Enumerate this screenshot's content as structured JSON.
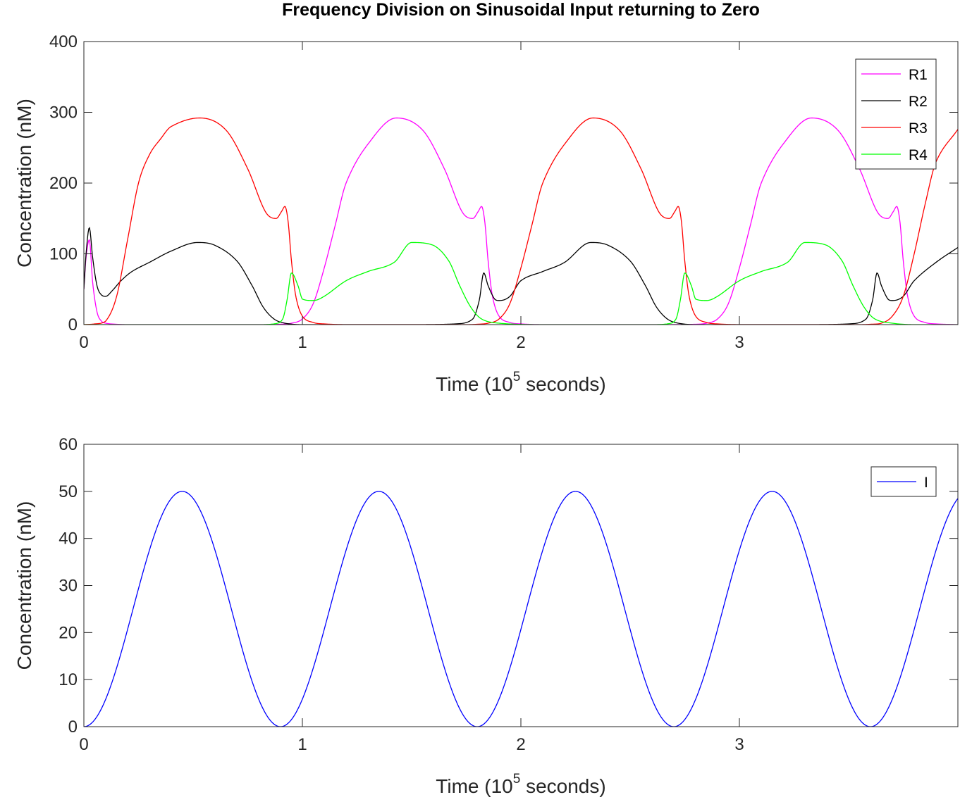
{
  "title": "Frequency Division on Sinusoidal Input returning to Zero",
  "chart_data": [
    {
      "type": "line",
      "xlabel_prefix": "Time (10",
      "xlabel_exponent": "5",
      "xlabel_suffix": " seconds)",
      "ylabel": "Concentration (nM)",
      "xlim": [
        0,
        4
      ],
      "ylim": [
        0,
        400
      ],
      "xticks": [
        "0",
        "1",
        "2",
        "3"
      ],
      "xtick_values": [
        0,
        1,
        2,
        3
      ],
      "yticks": [
        "0",
        "100",
        "200",
        "300",
        "400"
      ],
      "ytick_values": [
        0,
        100,
        200,
        300,
        400
      ],
      "legend_position": "top-right",
      "series": [
        {
          "name": "R1",
          "color": "#ff00ff",
          "x": [
            0,
            0.01,
            0.025,
            0.04,
            0.06,
            0.08,
            0.1,
            0.15,
            0.2,
            0.3,
            0.5,
            0.8,
            0.9,
            0.95,
            1.0,
            1.05,
            1.1,
            1.15,
            1.2,
            1.3,
            1.43,
            1.55,
            1.65,
            1.73,
            1.78,
            1.805,
            1.82,
            1.835,
            1.85,
            1.87,
            1.9,
            1.95,
            2.0,
            2.1,
            2.3,
            2.6,
            2.8,
            2.85,
            2.9,
            2.95,
            3.0,
            3.05,
            3.1,
            3.2,
            3.33,
            3.45,
            3.55,
            3.63,
            3.68,
            3.705,
            3.72,
            3.735,
            3.75,
            3.77,
            3.8,
            3.85,
            3.9,
            4.0
          ],
          "values": [
            50,
            95,
            120,
            60,
            18,
            5,
            2,
            0.5,
            0,
            0,
            0,
            0,
            0.5,
            2,
            8,
            30,
            80,
            140,
            200,
            255,
            292,
            275,
            220,
            160,
            150,
            160,
            167,
            145,
            90,
            40,
            12,
            3,
            1,
            0,
            0,
            0,
            0.5,
            2,
            8,
            30,
            80,
            140,
            200,
            255,
            292,
            275,
            220,
            160,
            150,
            160,
            167,
            145,
            90,
            40,
            12,
            3,
            1,
            0
          ]
        },
        {
          "name": "R2",
          "color": "#000000",
          "x": [
            0,
            0.01,
            0.025,
            0.04,
            0.06,
            0.08,
            0.1,
            0.13,
            0.17,
            0.22,
            0.3,
            0.4,
            0.52,
            0.6,
            0.7,
            0.77,
            0.82,
            0.87,
            0.92,
            1.0,
            1.2,
            1.5,
            1.7,
            1.78,
            1.81,
            1.83,
            1.85,
            1.88,
            1.9,
            1.95,
            2.0,
            2.1,
            2.2,
            2.32,
            2.4,
            2.5,
            2.57,
            2.62,
            2.67,
            2.72,
            2.8,
            3.0,
            3.3,
            3.5,
            3.58,
            3.61,
            3.63,
            3.65,
            3.68,
            3.7,
            3.75,
            3.8,
            3.9,
            4.0
          ],
          "values": [
            50,
            100,
            137,
            95,
            55,
            42,
            40,
            48,
            62,
            75,
            88,
            104,
            116,
            112,
            90,
            55,
            25,
            8,
            2,
            0,
            0,
            0,
            1,
            8,
            35,
            73,
            55,
            36,
            34,
            40,
            62,
            75,
            88,
            116,
            112,
            90,
            55,
            25,
            8,
            2,
            0,
            0,
            0,
            1,
            8,
            35,
            73,
            55,
            36,
            34,
            40,
            62,
            88,
            109
          ]
        },
        {
          "name": "R3",
          "color": "#ff0000",
          "x": [
            0,
            0.05,
            0.1,
            0.15,
            0.2,
            0.25,
            0.3,
            0.35,
            0.4,
            0.53,
            0.65,
            0.75,
            0.83,
            0.88,
            0.905,
            0.92,
            0.935,
            0.95,
            0.97,
            1.0,
            1.05,
            1.1,
            1.2,
            1.5,
            1.75,
            1.8,
            1.85,
            1.9,
            1.95,
            2.0,
            2.05,
            2.1,
            2.2,
            2.33,
            2.45,
            2.55,
            2.63,
            2.68,
            2.705,
            2.72,
            2.735,
            2.75,
            2.77,
            2.8,
            2.85,
            2.9,
            3.0,
            3.3,
            3.55,
            3.6,
            3.65,
            3.7,
            3.75,
            3.8,
            3.85,
            3.9,
            4.0
          ],
          "values": [
            0,
            1,
            5,
            40,
            120,
            200,
            240,
            262,
            280,
            292,
            275,
            220,
            160,
            150,
            160,
            167,
            145,
            90,
            40,
            12,
            3,
            1,
            0,
            0,
            0,
            0.5,
            2,
            8,
            30,
            80,
            140,
            200,
            255,
            292,
            275,
            220,
            160,
            150,
            160,
            167,
            145,
            90,
            40,
            12,
            3,
            1,
            0,
            0,
            0,
            0.5,
            2,
            12,
            40,
            100,
            170,
            230,
            276
          ]
        },
        {
          "name": "R4",
          "color": "#00ff00",
          "x": [
            0,
            0.3,
            0.6,
            0.8,
            0.87,
            0.91,
            0.93,
            0.95,
            0.98,
            1.0,
            1.05,
            1.1,
            1.2,
            1.3,
            1.42,
            1.5,
            1.6,
            1.67,
            1.72,
            1.77,
            1.82,
            1.9,
            2.1,
            2.4,
            2.6,
            2.67,
            2.71,
            2.73,
            2.75,
            2.78,
            2.8,
            2.85,
            2.9,
            3.0,
            3.1,
            3.22,
            3.3,
            3.4,
            3.47,
            3.52,
            3.57,
            3.62,
            3.7,
            3.8,
            4.0
          ],
          "values": [
            0,
            0,
            0,
            0,
            1,
            8,
            35,
            73,
            55,
            36,
            34,
            40,
            62,
            75,
            88,
            116,
            112,
            90,
            55,
            25,
            8,
            2,
            0,
            0,
            0,
            1,
            8,
            35,
            73,
            55,
            36,
            34,
            40,
            62,
            75,
            88,
            116,
            112,
            90,
            55,
            25,
            8,
            2,
            0,
            0
          ]
        }
      ]
    },
    {
      "type": "line",
      "xlabel_prefix": "Time (10",
      "xlabel_exponent": "5",
      "xlabel_suffix": " seconds)",
      "ylabel": "Concentration (nM)",
      "xlim": [
        0,
        4
      ],
      "ylim": [
        0,
        60
      ],
      "xticks": [
        "0",
        "1",
        "2",
        "3"
      ],
      "xtick_values": [
        0,
        1,
        2,
        3
      ],
      "yticks": [
        "0",
        "10",
        "20",
        "30",
        "40",
        "50",
        "60"
      ],
      "ytick_values": [
        0,
        10,
        20,
        30,
        40,
        50,
        60
      ],
      "legend_position": "top-right",
      "series": [
        {
          "name": "I",
          "color": "#0000ff",
          "function": "25*(1-cos(2*pi*x/0.9))",
          "x": [
            0,
            0.1125,
            0.225,
            0.3375,
            0.45,
            0.5625,
            0.675,
            0.7875,
            0.9,
            1.0125,
            1.125,
            1.2375,
            1.35,
            1.4625,
            1.575,
            1.6875,
            1.8,
            1.9125,
            2.025,
            2.1375,
            2.25,
            2.3625,
            2.475,
            2.5875,
            2.7,
            2.8125,
            2.925,
            3.0375,
            3.15,
            3.2625,
            3.375,
            3.4875,
            3.6,
            3.7125,
            3.825,
            3.9375,
            4.0
          ],
          "values": [
            0,
            7.3,
            25,
            42.7,
            50,
            42.7,
            25,
            7.3,
            0,
            7.3,
            25,
            42.7,
            50,
            42.7,
            25,
            7.3,
            0,
            7.3,
            25,
            42.7,
            50,
            42.7,
            25,
            7.3,
            0,
            7.3,
            25,
            42.7,
            50,
            42.7,
            25,
            7.3,
            0,
            7.3,
            25,
            42.7,
            48.5
          ]
        }
      ]
    }
  ]
}
